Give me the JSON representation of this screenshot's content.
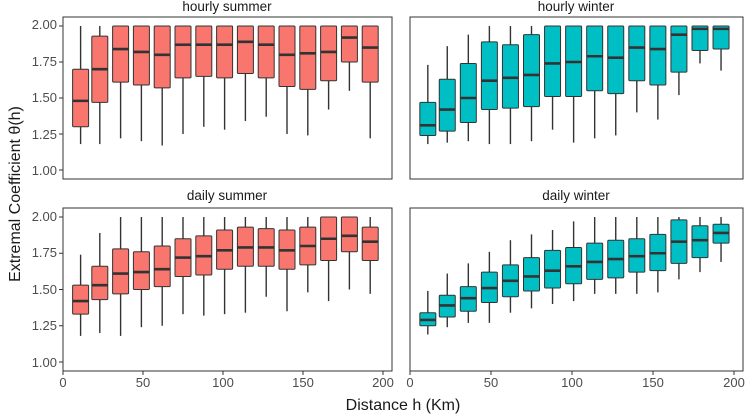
{
  "chart_data": {
    "type": "boxplot",
    "xlabel": "Distance h (Km)",
    "ylabel": "Extremal Coefficient θ(h)",
    "xlim": [
      0,
      200
    ],
    "ylim": [
      1.0,
      2.0
    ],
    "xticks": [
      0,
      50,
      100,
      150,
      200
    ],
    "yticks": [
      "1.00",
      "1.25",
      "1.50",
      "1.75",
      "2.00"
    ],
    "colors": {
      "summer": "#F8766D",
      "winter": "#00BFC4"
    },
    "x": [
      11,
      23,
      36,
      49,
      62,
      75,
      88,
      101,
      114,
      127,
      140,
      153,
      166,
      179,
      192
    ],
    "panels": [
      {
        "title": "hourly  summer",
        "season": "summer",
        "boxes": [
          [
            1.18,
            1.3,
            1.48,
            1.7,
            2.0
          ],
          [
            1.18,
            1.47,
            1.7,
            1.93,
            2.0
          ],
          [
            1.22,
            1.61,
            1.84,
            2.0,
            2.0
          ],
          [
            1.2,
            1.59,
            1.82,
            2.0,
            2.0
          ],
          [
            1.17,
            1.57,
            1.8,
            2.0,
            2.0
          ],
          [
            1.25,
            1.64,
            1.87,
            2.0,
            2.0
          ],
          [
            1.3,
            1.65,
            1.87,
            2.0,
            2.0
          ],
          [
            1.28,
            1.64,
            1.87,
            2.0,
            2.0
          ],
          [
            1.34,
            1.67,
            1.89,
            2.0,
            2.0
          ],
          [
            1.37,
            1.64,
            1.87,
            2.0,
            2.0
          ],
          [
            1.25,
            1.58,
            1.8,
            2.0,
            2.0
          ],
          [
            1.24,
            1.56,
            1.81,
            2.0,
            2.0
          ],
          [
            1.42,
            1.62,
            1.82,
            2.0,
            2.0
          ],
          [
            1.55,
            1.75,
            1.92,
            2.0,
            2.0
          ],
          [
            1.22,
            1.61,
            1.85,
            2.0,
            2.0
          ]
        ]
      },
      {
        "title": "hourly  winter",
        "season": "winter",
        "boxes": [
          [
            1.18,
            1.24,
            1.31,
            1.47,
            1.73
          ],
          [
            1.19,
            1.27,
            1.42,
            1.63,
            1.86
          ],
          [
            1.2,
            1.33,
            1.5,
            1.74,
            1.94
          ],
          [
            1.18,
            1.42,
            1.62,
            1.89,
            2.0
          ],
          [
            1.18,
            1.43,
            1.64,
            1.87,
            2.0
          ],
          [
            1.2,
            1.44,
            1.66,
            1.94,
            2.0
          ],
          [
            1.28,
            1.51,
            1.74,
            2.0,
            2.0
          ],
          [
            1.19,
            1.51,
            1.75,
            2.0,
            2.0
          ],
          [
            1.22,
            1.55,
            1.79,
            2.0,
            2.0
          ],
          [
            1.24,
            1.53,
            1.78,
            2.0,
            2.0
          ],
          [
            1.4,
            1.62,
            1.85,
            2.0,
            2.0
          ],
          [
            1.35,
            1.59,
            1.84,
            2.0,
            2.0
          ],
          [
            1.52,
            1.68,
            1.94,
            2.0,
            2.0
          ],
          [
            1.74,
            1.83,
            1.98,
            2.0,
            2.0
          ],
          [
            1.69,
            1.84,
            1.98,
            2.0,
            2.0
          ]
        ]
      },
      {
        "title": "daily  summer",
        "season": "summer",
        "boxes": [
          [
            1.18,
            1.33,
            1.42,
            1.53,
            1.74
          ],
          [
            1.2,
            1.43,
            1.53,
            1.66,
            1.89
          ],
          [
            1.18,
            1.47,
            1.61,
            1.78,
            2.0
          ],
          [
            1.24,
            1.5,
            1.62,
            1.76,
            2.0
          ],
          [
            1.25,
            1.52,
            1.64,
            1.8,
            2.0
          ],
          [
            1.33,
            1.59,
            1.72,
            1.85,
            2.0
          ],
          [
            1.32,
            1.6,
            1.73,
            1.87,
            2.0
          ],
          [
            1.33,
            1.64,
            1.77,
            1.91,
            2.0
          ],
          [
            1.34,
            1.66,
            1.79,
            1.93,
            2.0
          ],
          [
            1.45,
            1.66,
            1.79,
            1.92,
            2.0
          ],
          [
            1.35,
            1.64,
            1.77,
            1.91,
            2.0
          ],
          [
            1.48,
            1.67,
            1.8,
            1.93,
            2.0
          ],
          [
            1.42,
            1.7,
            1.85,
            2.0,
            2.0
          ],
          [
            1.5,
            1.76,
            1.87,
            2.0,
            2.0
          ],
          [
            1.47,
            1.7,
            1.83,
            1.93,
            2.0
          ]
        ]
      },
      {
        "title": "daily  winter",
        "season": "winter",
        "boxes": [
          [
            1.19,
            1.25,
            1.29,
            1.34,
            1.49
          ],
          [
            1.24,
            1.31,
            1.39,
            1.46,
            1.61
          ],
          [
            1.27,
            1.35,
            1.44,
            1.52,
            1.68
          ],
          [
            1.27,
            1.41,
            1.51,
            1.62,
            1.76
          ],
          [
            1.34,
            1.45,
            1.56,
            1.67,
            1.84
          ],
          [
            1.37,
            1.49,
            1.59,
            1.72,
            1.88
          ],
          [
            1.4,
            1.51,
            1.63,
            1.77,
            1.91
          ],
          [
            1.42,
            1.54,
            1.66,
            1.79,
            1.97
          ],
          [
            1.47,
            1.57,
            1.69,
            1.82,
            2.0
          ],
          [
            1.47,
            1.58,
            1.71,
            1.84,
            2.0
          ],
          [
            1.47,
            1.62,
            1.73,
            1.85,
            2.0
          ],
          [
            1.48,
            1.63,
            1.75,
            1.88,
            2.0
          ],
          [
            1.57,
            1.68,
            1.83,
            1.98,
            2.0
          ],
          [
            1.62,
            1.72,
            1.84,
            1.94,
            2.0
          ],
          [
            1.69,
            1.82,
            1.89,
            1.95,
            2.0
          ]
        ]
      }
    ]
  }
}
